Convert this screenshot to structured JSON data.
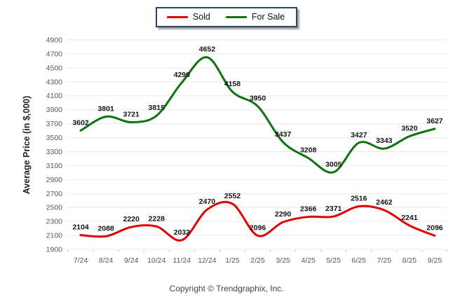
{
  "legend": {
    "items": [
      {
        "label": "Sold",
        "color": "#e10000"
      },
      {
        "label": "For Sale",
        "color": "#0d730d"
      }
    ]
  },
  "footer": {
    "copyright": "Copyright © Trendgraphix, Inc."
  },
  "chart_data": {
    "type": "line",
    "title": "",
    "xlabel": "",
    "ylabel": "Average Price (in $,000)",
    "categories": [
      "7/24",
      "8/24",
      "9/24",
      "10/24",
      "11/24",
      "12/24",
      "1/25",
      "2/25",
      "3/25",
      "4/25",
      "5/25",
      "6/25",
      "7/25",
      "8/25",
      "9/25"
    ],
    "series": [
      {
        "name": "Sold",
        "color": "#e10000",
        "values": [
          2104,
          2088,
          2220,
          2228,
          2032,
          2470,
          2552,
          2096,
          2290,
          2366,
          2371,
          2516,
          2462,
          2241,
          2096
        ]
      },
      {
        "name": "For Sale",
        "color": "#0d730d",
        "values": [
          3602,
          3801,
          3721,
          3815,
          4290,
          4652,
          4158,
          3950,
          3437,
          3208,
          3005,
          3427,
          3343,
          3520,
          3627
        ]
      }
    ],
    "ylim": [
      1900,
      4900
    ],
    "ytick_step": 200,
    "grid": true,
    "data_labels": true,
    "legend_position": "top-center"
  },
  "colors": {
    "grid": "#e9e9e9",
    "axis_tick": "#cccccc",
    "tick_text": "#595959",
    "data_label": "#141414"
  }
}
